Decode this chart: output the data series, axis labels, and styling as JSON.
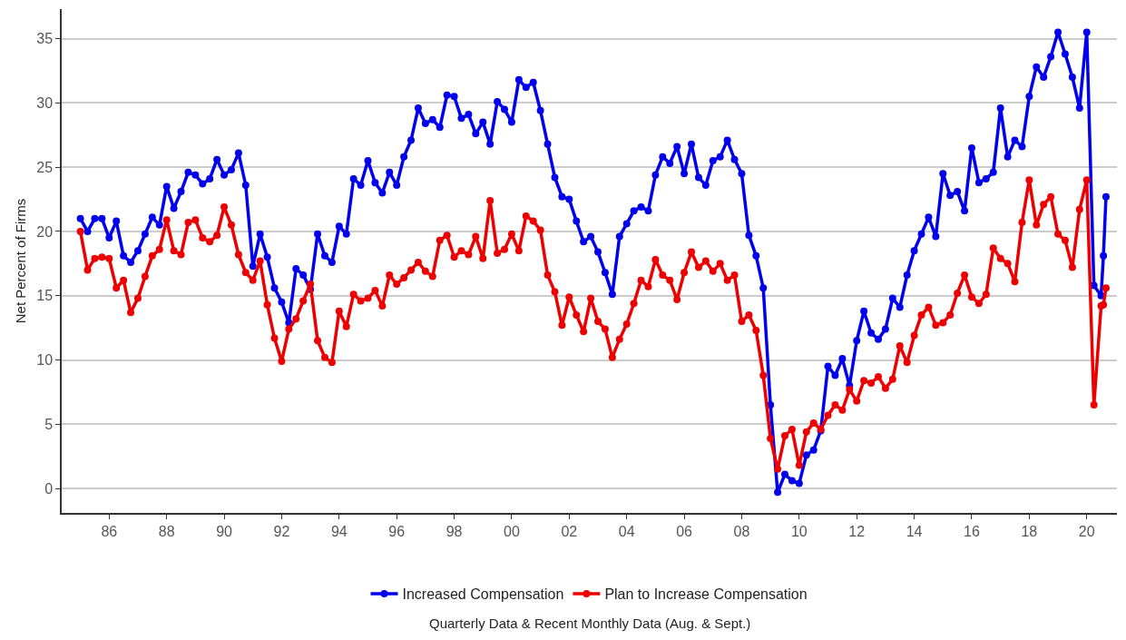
{
  "chart_data": {
    "type": "line",
    "ylabel": "Net Percent of Firms",
    "annotations": [
      "Quarterly Data & Recent Monthly Data (Aug. & Sept.)"
    ],
    "x": [
      1985,
      1985.25,
      1985.5,
      1985.75,
      1986,
      1986.25,
      1986.5,
      1986.75,
      1987,
      1987.25,
      1987.5,
      1987.75,
      1988,
      1988.25,
      1988.5,
      1988.75,
      1989,
      1989.25,
      1989.5,
      1989.75,
      1990,
      1990.25,
      1990.5,
      1990.75,
      1991,
      1991.25,
      1991.5,
      1991.75,
      1992,
      1992.25,
      1992.5,
      1992.75,
      1993,
      1993.25,
      1993.5,
      1993.75,
      1994,
      1994.25,
      1994.5,
      1994.75,
      1995,
      1995.25,
      1995.5,
      1995.75,
      1996,
      1996.25,
      1996.5,
      1996.75,
      1997,
      1997.25,
      1997.5,
      1997.75,
      1998,
      1998.25,
      1998.5,
      1998.75,
      1999,
      1999.25,
      1999.5,
      1999.75,
      2000,
      2000.25,
      2000.5,
      2000.75,
      2001,
      2001.25,
      2001.5,
      2001.75,
      2002,
      2002.25,
      2002.5,
      2002.75,
      2003,
      2003.25,
      2003.5,
      2003.75,
      2004,
      2004.25,
      2004.5,
      2004.75,
      2005,
      2005.25,
      2005.5,
      2005.75,
      2006,
      2006.25,
      2006.5,
      2006.75,
      2007,
      2007.25,
      2007.5,
      2007.75,
      2008,
      2008.25,
      2008.5,
      2008.75,
      2009,
      2009.25,
      2009.5,
      2009.75,
      2010,
      2010.25,
      2010.5,
      2010.75,
      2011,
      2011.25,
      2011.5,
      2011.75,
      2012,
      2012.25,
      2012.5,
      2012.75,
      2013,
      2013.25,
      2013.5,
      2013.75,
      2014,
      2014.25,
      2014.5,
      2014.75,
      2015,
      2015.25,
      2015.5,
      2015.75,
      2016,
      2016.25,
      2016.5,
      2016.75,
      2017,
      2017.25,
      2017.5,
      2017.75,
      2018,
      2018.25,
      2018.5,
      2018.75,
      2019,
      2019.25,
      2019.5,
      2019.75,
      2020,
      2020.25,
      2020.5,
      2020.58,
      2020.67
    ],
    "series": [
      {
        "name": "Increased Compensation",
        "color": "#0000ee",
        "values": [
          21,
          20,
          21,
          21,
          19.5,
          20.8,
          18.1,
          17.6,
          18.5,
          19.8,
          21.1,
          20.5,
          23.5,
          21.8,
          23.1,
          24.6,
          24.4,
          23.7,
          24.1,
          25.6,
          24.4,
          24.8,
          26.1,
          23.6,
          17.3,
          19.8,
          18.0,
          15.6,
          14.5,
          12.9,
          17.1,
          16.6,
          15.5,
          19.8,
          18.1,
          17.6,
          20.4,
          19.8,
          24.1,
          23.6,
          25.5,
          23.8,
          23.0,
          24.6,
          23.6,
          25.8,
          27.1,
          29.6,
          28.4,
          28.7,
          28.1,
          30.6,
          30.5,
          28.8,
          29.1,
          27.6,
          28.5,
          26.8,
          30.1,
          29.5,
          28.5,
          31.8,
          31.2,
          31.6,
          29.4,
          26.8,
          24.2,
          22.7,
          22.5,
          20.8,
          19.2,
          19.6,
          18.4,
          16.8,
          15.1,
          19.6,
          20.6,
          21.6,
          21.9,
          21.6,
          24.4,
          25.8,
          25.3,
          26.6,
          24.5,
          26.8,
          24.2,
          23.6,
          25.5,
          25.8,
          27.1,
          25.6,
          24.5,
          19.7,
          18.1,
          15.6,
          6.5,
          -0.3,
          1.1,
          0.6,
          0.4,
          2.6,
          3.0,
          4.5,
          9.5,
          8.8,
          10.1,
          8.0,
          11.5,
          13.8,
          12.1,
          11.6,
          12.4,
          14.8,
          14.1,
          16.6,
          18.5,
          19.8,
          21.1,
          19.6,
          24.5,
          22.8,
          23.1,
          21.6,
          26.5,
          23.8,
          24.1,
          24.6,
          29.6,
          25.8,
          27.1,
          26.6,
          30.5,
          32.8,
          32.0,
          33.6,
          35.5,
          33.8,
          32.0,
          29.6,
          35.5,
          15.8,
          15.0,
          18.1,
          22.7
        ]
      },
      {
        "name": "Plan to Increase Compensation",
        "color": "#ee0000",
        "values": [
          20.0,
          17.0,
          17.9,
          18.0,
          17.9,
          15.6,
          16.2,
          13.7,
          14.8,
          16.5,
          18.1,
          18.6,
          20.9,
          18.5,
          18.2,
          20.7,
          20.9,
          19.5,
          19.2,
          19.7,
          21.9,
          20.5,
          18.2,
          16.8,
          16.2,
          17.7,
          14.3,
          11.7,
          9.9,
          12.4,
          13.2,
          14.6,
          15.9,
          11.5,
          10.2,
          9.8,
          13.8,
          12.6,
          15.1,
          14.6,
          14.8,
          15.4,
          14.2,
          16.6,
          15.9,
          16.4,
          17.0,
          17.6,
          16.9,
          16.5,
          19.3,
          19.7,
          18.0,
          18.5,
          18.2,
          19.6,
          17.9,
          22.4,
          18.3,
          18.6,
          19.8,
          18.5,
          21.2,
          20.8,
          20.1,
          16.6,
          15.3,
          12.7,
          14.9,
          13.5,
          12.2,
          14.8,
          13.0,
          12.4,
          10.2,
          11.6,
          12.8,
          14.4,
          16.2,
          15.7,
          17.8,
          16.6,
          16.2,
          14.7,
          16.8,
          18.4,
          17.2,
          17.7,
          16.9,
          17.5,
          16.2,
          16.6,
          13.0,
          13.5,
          12.3,
          8.8,
          3.9,
          1.5,
          4.1,
          4.6,
          1.8,
          4.4,
          5.1,
          4.6,
          5.7,
          6.5,
          6.1,
          7.7,
          6.8,
          8.4,
          8.2,
          8.7,
          7.8,
          8.5,
          11.1,
          9.8,
          11.9,
          13.5,
          14.1,
          12.7,
          12.9,
          13.5,
          15.2,
          16.6,
          14.9,
          14.4,
          15.1,
          18.7,
          17.9,
          17.5,
          16.1,
          20.7,
          24.0,
          20.5,
          22.1,
          22.7,
          19.8,
          19.3,
          17.2,
          21.7,
          24.0,
          6.5,
          14.2,
          14.3,
          15.6
        ]
      }
    ],
    "xlim": [
      1984.35,
      2021.05
    ],
    "xticks": [
      {
        "value": 1986,
        "label": "86"
      },
      {
        "value": 1988,
        "label": "88"
      },
      {
        "value": 1990,
        "label": "90"
      },
      {
        "value": 1992,
        "label": "92"
      },
      {
        "value": 1994,
        "label": "94"
      },
      {
        "value": 1996,
        "label": "96"
      },
      {
        "value": 1998,
        "label": "98"
      },
      {
        "value": 2000,
        "label": "00"
      },
      {
        "value": 2002,
        "label": "02"
      },
      {
        "value": 2004,
        "label": "04"
      },
      {
        "value": 2006,
        "label": "06"
      },
      {
        "value": 2008,
        "label": "08"
      },
      {
        "value": 2010,
        "label": "10"
      },
      {
        "value": 2012,
        "label": "12"
      },
      {
        "value": 2014,
        "label": "14"
      },
      {
        "value": 2016,
        "label": "16"
      },
      {
        "value": 2018,
        "label": "18"
      },
      {
        "value": 2020,
        "label": "20"
      }
    ],
    "ylim": [
      -1.9,
      37.3
    ],
    "yticks": [
      0,
      5,
      10,
      15,
      20,
      25,
      30,
      35
    ],
    "grid": "y",
    "legend": "bottom",
    "marker": "circle",
    "line_style": "solid"
  }
}
